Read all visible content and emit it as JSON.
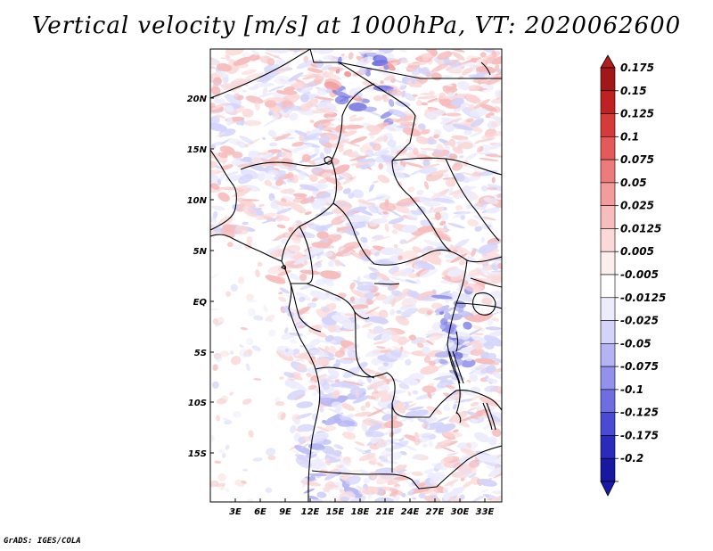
{
  "title": "Vertical velocity [m/s] at 1000hPa, VT: 2020062600",
  "footer": "GrADS: IGES/COLA",
  "map": {
    "lat_labels": [
      "20N",
      "15N",
      "10N",
      "5N",
      "EQ",
      "5S",
      "10S",
      "15S"
    ],
    "lon_labels": [
      "3E",
      "6E",
      "9E",
      "12E",
      "15E",
      "18E",
      "21E",
      "24E",
      "27E",
      "30E",
      "33E"
    ]
  },
  "colorbar": {
    "labels": [
      "0.175",
      "0.15",
      "0.125",
      "0.1",
      "0.075",
      "0.05",
      "0.025",
      "0.0125",
      "0.005",
      "-0.005",
      "-0.0125",
      "-0.025",
      "-0.05",
      "-0.075",
      "-0.1",
      "-0.125",
      "-0.175",
      "-0.2"
    ],
    "colors": [
      "#a01818",
      "#c02222",
      "#d63a3a",
      "#e45a5a",
      "#ec7b7b",
      "#f29c9c",
      "#f7bcbc",
      "#fbd9d9",
      "#fdeeee",
      "#ffffff",
      "#ececfd",
      "#d4d4fb",
      "#b4b4f4",
      "#9292ec",
      "#6e6ee0",
      "#4a4ad2",
      "#2a2abd",
      "#1818a0"
    ],
    "top_color": "#b21e1e",
    "bottom_color": "#1a1aa8"
  }
}
